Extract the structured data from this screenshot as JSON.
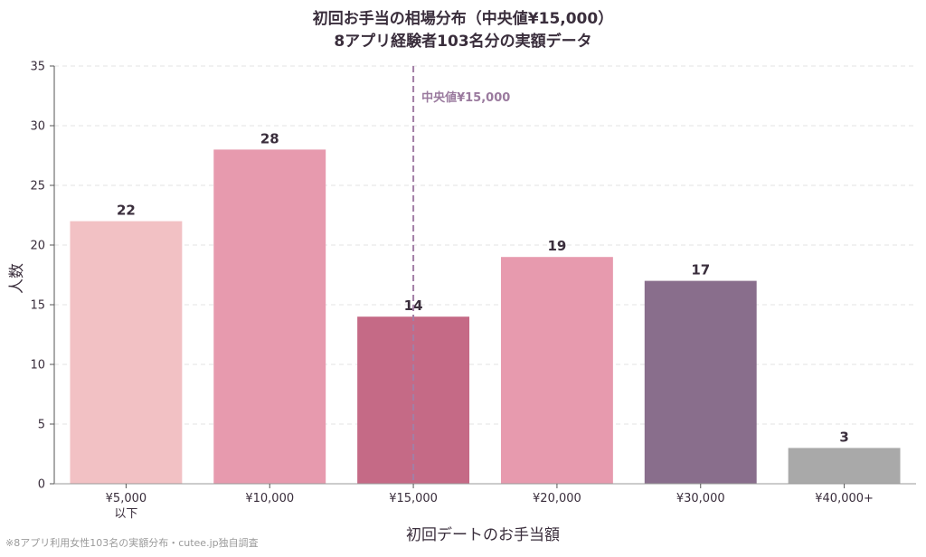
{
  "chart_data": {
    "type": "bar",
    "title": "初回お手当の相場分布（中央値¥15,000）",
    "subtitle": "8アプリ経験者103名分の実額データ",
    "xlabel": "初回デートのお手当額",
    "ylabel": "人数",
    "ylim": [
      0,
      35
    ],
    "yticks": [
      0,
      5,
      10,
      15,
      20,
      25,
      30,
      35
    ],
    "grid": "horizontal-dashed",
    "categories": [
      {
        "line1": "¥5,000",
        "line2": "以下"
      },
      {
        "line1": "¥10,000",
        "line2": ""
      },
      {
        "line1": "¥15,000",
        "line2": ""
      },
      {
        "line1": "¥20,000",
        "line2": ""
      },
      {
        "line1": "¥30,000",
        "line2": ""
      },
      {
        "line1": "¥40,000+",
        "line2": ""
      }
    ],
    "values": [
      22,
      28,
      14,
      19,
      17,
      3
    ],
    "colors": [
      "#f2c1c4",
      "#e79aae",
      "#c56a86",
      "#e79aae",
      "#896e8c",
      "#a9a9a9"
    ],
    "median": {
      "label": "中央値¥15,000",
      "category_index": 2,
      "color": "#a27fa6"
    },
    "footnote": "※8アプリ利用女性103名の実額分布・cutee.jp独自調査"
  }
}
